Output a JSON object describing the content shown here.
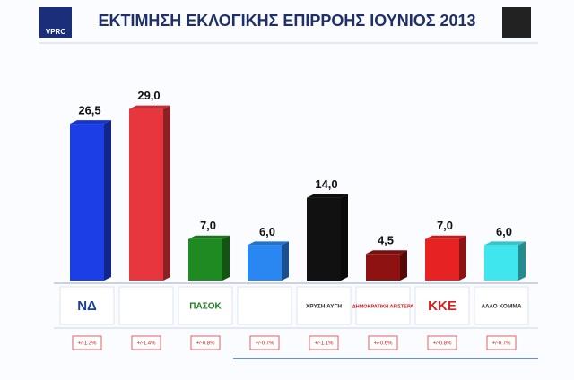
{
  "chart_data": {
    "type": "bar",
    "title": "ΕΚΤΙΜΗΣΗ ΕΚΛΟΓΙΚΗΣ ΕΠΙΡΡΟΗΣ ΙΟΥΝΙΟΣ 2013",
    "logo": "VPRC",
    "categories": [
      "ΝΔ",
      null,
      "ΠΑΣΟΚ",
      null,
      "ΧΡΥΣΗ ΑΥΓΗ",
      "ΔΗΜΟΚΡΑΤΙΚΗ ΑΡΙΣΤΕΡΑ",
      "ΚΚΕ",
      "ΑΛΛΟ ΚΟΜΜΑ"
    ],
    "values": [
      26.5,
      29.0,
      7.0,
      6.0,
      14.0,
      4.5,
      7.0,
      6.0
    ],
    "value_labels": [
      "26,5",
      "29,0",
      "7,0",
      "6,0",
      "14,0",
      "4,5",
      "7,0",
      "6,0"
    ],
    "colors": [
      "#1c3ee6",
      "#e8363e",
      "#1f8a22",
      "#2a86f0",
      "#111111",
      "#8e1212",
      "#e62222",
      "#3fe6ee"
    ],
    "margin_labels": [
      "+/-1.3%",
      "+/-1.4%",
      "+/-0.8%",
      "+/-0.7%",
      "+/-1.1%",
      "+/-0.6%",
      "+/-0.8%",
      "+/-0.7%"
    ]
  }
}
